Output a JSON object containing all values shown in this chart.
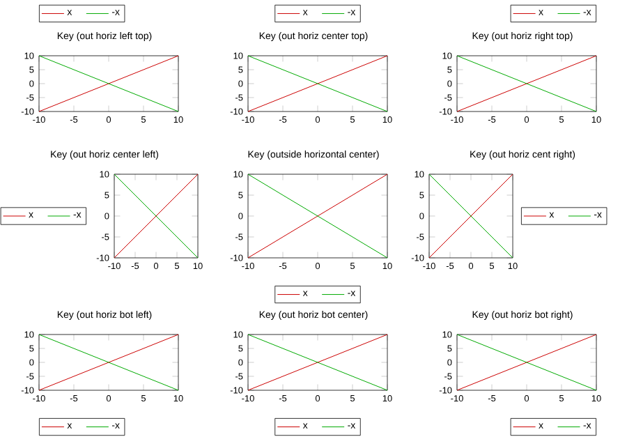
{
  "chart_data": [
    {
      "type": "line",
      "title": "Key (out horiz left top)",
      "x": [
        -10,
        -5,
        0,
        5,
        10
      ],
      "xlim": [
        -10,
        10
      ],
      "ylim": [
        -10,
        10
      ],
      "xticks": [
        -10,
        -5,
        0,
        5,
        10
      ],
      "yticks": [
        -10,
        -5,
        0,
        5,
        10
      ],
      "legend": "top left",
      "series": [
        {
          "name": "x",
          "color": "#cc0000",
          "values": [
            -10,
            -5,
            0,
            5,
            10
          ]
        },
        {
          "name": "-x",
          "color": "#00aa00",
          "values": [
            10,
            5,
            0,
            -5,
            -10
          ]
        }
      ]
    },
    {
      "type": "line",
      "title": "Key (out horiz center top)",
      "x": [
        -10,
        10
      ],
      "xlim": [
        -10,
        10
      ],
      "ylim": [
        -10,
        10
      ],
      "xticks": [
        -10,
        -5,
        0,
        5,
        10
      ],
      "yticks": [
        -10,
        -5,
        0,
        5,
        10
      ],
      "legend": "top",
      "series": [
        {
          "name": "x",
          "color": "#cc0000",
          "values": [
            -10,
            10
          ]
        },
        {
          "name": "-x",
          "color": "#00aa00",
          "values": [
            10,
            -10
          ]
        }
      ]
    },
    {
      "type": "line",
      "title": "Key (out horiz right top)",
      "x": [
        -10,
        10
      ],
      "xlim": [
        -10,
        10
      ],
      "ylim": [
        -10,
        10
      ],
      "xticks": [
        -10,
        -5,
        0,
        5,
        10
      ],
      "yticks": [
        -10,
        -5,
        0,
        5,
        10
      ],
      "legend": "top right",
      "series": [
        {
          "name": "x",
          "color": "#cc0000",
          "values": [
            -10,
            10
          ]
        },
        {
          "name": "-x",
          "color": "#00aa00",
          "values": [
            10,
            -10
          ]
        }
      ]
    },
    {
      "type": "line",
      "title": "Key (out horiz center left)",
      "x": [
        -10,
        10
      ],
      "xlim": [
        -10,
        10
      ],
      "ylim": [
        -10,
        10
      ],
      "xticks": [
        -10,
        -5,
        0,
        5,
        10
      ],
      "yticks": [
        -10,
        -5,
        0,
        5,
        10
      ],
      "legend": "left",
      "series": [
        {
          "name": "x",
          "color": "#cc0000",
          "values": [
            -10,
            10
          ]
        },
        {
          "name": "-x",
          "color": "#00aa00",
          "values": [
            10,
            -10
          ]
        }
      ]
    },
    {
      "type": "line",
      "title": "Key (outside horizontal center)",
      "x": [
        -10,
        10
      ],
      "xlim": [
        -10,
        10
      ],
      "ylim": [
        -10,
        10
      ],
      "xticks": [
        -10,
        -5,
        0,
        5,
        10
      ],
      "yticks": [
        -10,
        -5,
        0,
        5,
        10
      ],
      "legend": "bottom",
      "series": [
        {
          "name": "x",
          "color": "#cc0000",
          "values": [
            -10,
            10
          ]
        },
        {
          "name": "-x",
          "color": "#00aa00",
          "values": [
            10,
            -10
          ]
        }
      ]
    },
    {
      "type": "line",
      "title": "Key (out horiz cent right)",
      "x": [
        -10,
        10
      ],
      "xlim": [
        -10,
        10
      ],
      "ylim": [
        -10,
        10
      ],
      "xticks": [
        -10,
        -5,
        0,
        5,
        10
      ],
      "yticks": [
        -10,
        -5,
        0,
        5,
        10
      ],
      "legend": "right",
      "series": [
        {
          "name": "x",
          "color": "#cc0000",
          "values": [
            -10,
            10
          ]
        },
        {
          "name": "-x",
          "color": "#00aa00",
          "values": [
            10,
            -10
          ]
        }
      ]
    },
    {
      "type": "line",
      "title": "Key (out horiz bot left)",
      "x": [
        -10,
        10
      ],
      "xlim": [
        -10,
        10
      ],
      "ylim": [
        -10,
        10
      ],
      "xticks": [
        -10,
        -5,
        0,
        5,
        10
      ],
      "yticks": [
        -10,
        -5,
        0,
        5,
        10
      ],
      "legend": "bottom left",
      "series": [
        {
          "name": "x",
          "color": "#cc0000",
          "values": [
            -10,
            10
          ]
        },
        {
          "name": "-x",
          "color": "#00aa00",
          "values": [
            10,
            -10
          ]
        }
      ]
    },
    {
      "type": "line",
      "title": "Key (out horiz bot center)",
      "x": [
        -10,
        10
      ],
      "xlim": [
        -10,
        10
      ],
      "ylim": [
        -10,
        10
      ],
      "xticks": [
        -10,
        -5,
        0,
        5,
        10
      ],
      "yticks": [
        -10,
        -5,
        0,
        5,
        10
      ],
      "legend": "bottom",
      "series": [
        {
          "name": "x",
          "color": "#cc0000",
          "values": [
            -10,
            10
          ]
        },
        {
          "name": "-x",
          "color": "#00aa00",
          "values": [
            10,
            -10
          ]
        }
      ]
    },
    {
      "type": "line",
      "title": "Key (out horiz bot right)",
      "x": [
        -10,
        10
      ],
      "xlim": [
        -10,
        10
      ],
      "ylim": [
        -10,
        10
      ],
      "xticks": [
        -10,
        -5,
        0,
        5,
        10
      ],
      "yticks": [
        -10,
        -5,
        0,
        5,
        10
      ],
      "legend": "bottom right",
      "series": [
        {
          "name": "x",
          "color": "#cc0000",
          "values": [
            -10,
            10
          ]
        },
        {
          "name": "-x",
          "color": "#00aa00",
          "values": [
            10,
            -10
          ]
        }
      ]
    }
  ]
}
